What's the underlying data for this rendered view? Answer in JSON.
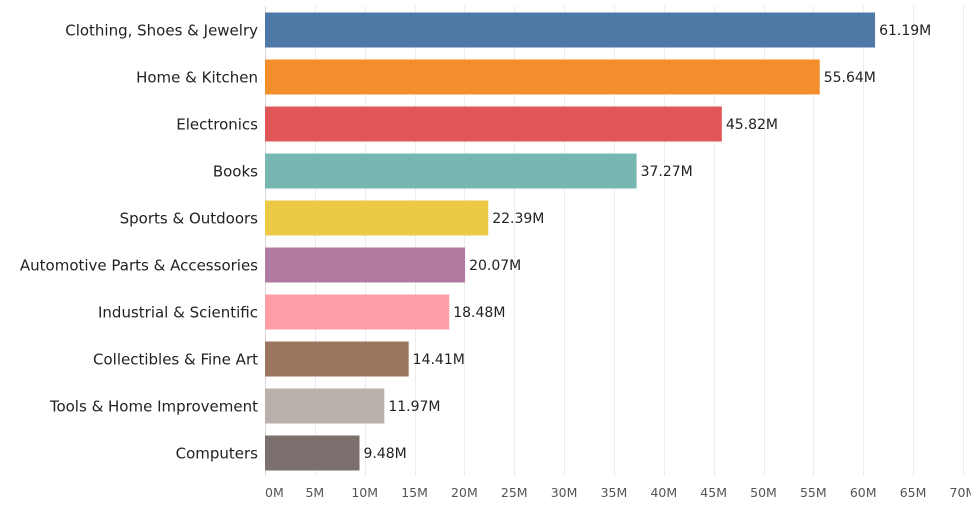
{
  "chart_data": {
    "type": "bar",
    "orientation": "horizontal",
    "title": "",
    "xlabel": "",
    "ylabel": "",
    "categories": [
      "Clothing, Shoes & Jewelry",
      "Home & Kitchen",
      "Electronics",
      "Books",
      "Sports & Outdoors",
      "Automotive Parts & Accessories",
      "Industrial & Scientific",
      "Collectibles & Fine Art",
      "Tools & Home Improvement",
      "Computers"
    ],
    "values": [
      61.19,
      55.64,
      45.82,
      37.27,
      22.39,
      20.07,
      18.48,
      14.41,
      11.97,
      9.48
    ],
    "value_labels": [
      "61.19M",
      "55.64M",
      "45.82M",
      "37.27M",
      "22.39M",
      "20.07M",
      "18.48M",
      "14.41M",
      "11.97M",
      "9.48M"
    ],
    "colors": [
      "#4e79a7",
      "#f28e2b",
      "#e15759",
      "#76b7b2",
      "#edc948",
      "#b07aa1",
      "#ff9da7",
      "#9c755f",
      "#bab0ac",
      "#7b706e"
    ],
    "xlim": [
      0,
      70
    ],
    "xticks": [
      0,
      5,
      10,
      15,
      20,
      25,
      30,
      35,
      40,
      45,
      50,
      55,
      60,
      65,
      70
    ],
    "xtick_labels": [
      "0M",
      "5M",
      "10M",
      "15M",
      "20M",
      "25M",
      "30M",
      "35M",
      "40M",
      "45M",
      "50M",
      "55M",
      "60M",
      "65M",
      "70M"
    ],
    "grid": "vertical",
    "legend": "none"
  }
}
